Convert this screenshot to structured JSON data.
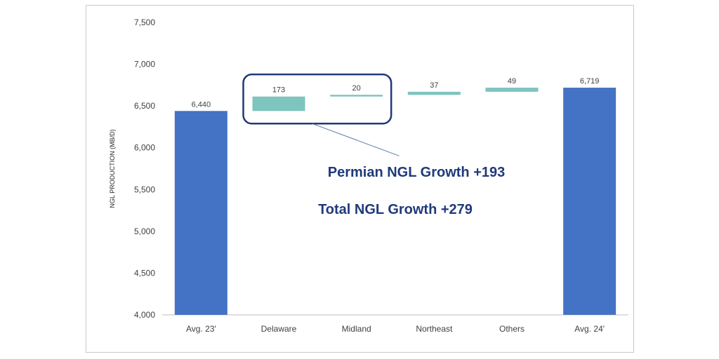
{
  "chart_data": {
    "type": "bar",
    "subtype": "waterfall",
    "ylabel": "NGL PRODUCTION (MB/D)",
    "ylim": [
      4000,
      7500
    ],
    "yticks": [
      "4,000",
      "4,500",
      "5,000",
      "5,500",
      "6,000",
      "6,500",
      "7,000",
      "7,500"
    ],
    "ytick_values": [
      4000,
      4500,
      5000,
      5500,
      6000,
      6500,
      7000,
      7500
    ],
    "grid": false,
    "categories": [
      "Avg. 23'",
      "Delaware",
      "Midland",
      "Northeast",
      "Others",
      "Avg. 24'"
    ],
    "bars": [
      {
        "category": "Avg. 23'",
        "kind": "total",
        "start": 4000,
        "end": 6440,
        "label": "6,440"
      },
      {
        "category": "Delaware",
        "kind": "increase",
        "start": 6440,
        "end": 6613,
        "label": "173"
      },
      {
        "category": "Midland",
        "kind": "increase",
        "start": 6613,
        "end": 6633,
        "label": "20"
      },
      {
        "category": "Northeast",
        "kind": "increase",
        "start": 6633,
        "end": 6670,
        "label": "37"
      },
      {
        "category": "Others",
        "kind": "increase",
        "start": 6670,
        "end": 6719,
        "label": "49"
      },
      {
        "category": "Avg. 24'",
        "kind": "total",
        "start": 4000,
        "end": 6719,
        "label": "6,719"
      }
    ],
    "colors": {
      "total": "#4472c4",
      "increase": "#7fc4bf",
      "callout": "#1f3a7a",
      "axis": "#bfbfbf"
    },
    "annotations": [
      "Permian NGL Growth +193",
      "Total NGL Growth +279"
    ]
  }
}
